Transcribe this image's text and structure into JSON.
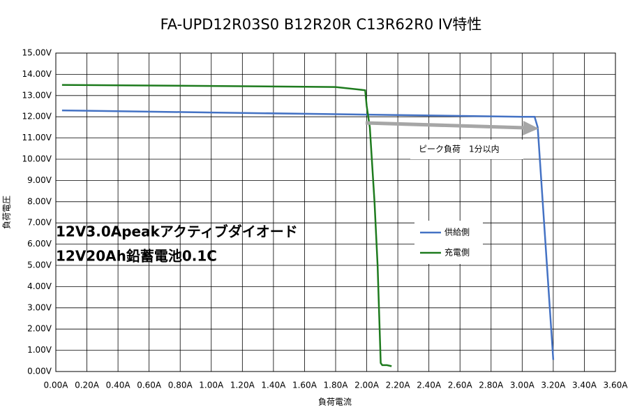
{
  "chart_data": {
    "type": "line",
    "title": "FA-UPD12R03S0 B12R20R C13R62R0 IV特性",
    "x_label": "負荷電流",
    "y_label": "負荷電圧",
    "xlim": [
      0,
      3.6
    ],
    "ylim": [
      0,
      15
    ],
    "xticks": [
      {
        "value": 0,
        "label": "0.00A"
      },
      {
        "value": 0.2,
        "label": "0.20A"
      },
      {
        "value": 0.4,
        "label": "0.40A"
      },
      {
        "value": 0.6,
        "label": "0.60A"
      },
      {
        "value": 0.8,
        "label": "0.80A"
      },
      {
        "value": 1.0,
        "label": "1.00A"
      },
      {
        "value": 1.2,
        "label": "1.20A"
      },
      {
        "value": 1.4,
        "label": "1.40A"
      },
      {
        "value": 1.6,
        "label": "1.60A"
      },
      {
        "value": 1.8,
        "label": "1.80A"
      },
      {
        "value": 2.0,
        "label": "2.00A"
      },
      {
        "value": 2.2,
        "label": "2.20A"
      },
      {
        "value": 2.4,
        "label": "2.40A"
      },
      {
        "value": 2.6,
        "label": "2.60A"
      },
      {
        "value": 2.8,
        "label": "2.80A"
      },
      {
        "value": 3.0,
        "label": "3.00A"
      },
      {
        "value": 3.2,
        "label": "3.20A"
      },
      {
        "value": 3.4,
        "label": "3.40A"
      },
      {
        "value": 3.6,
        "label": "3.60A"
      }
    ],
    "yticks": [
      {
        "value": 0,
        "label": "0.00V"
      },
      {
        "value": 1,
        "label": "1.00V"
      },
      {
        "value": 2,
        "label": "2.00V"
      },
      {
        "value": 3,
        "label": "3.00V"
      },
      {
        "value": 4,
        "label": "4.00V"
      },
      {
        "value": 5,
        "label": "5.00V"
      },
      {
        "value": 6,
        "label": "6.00V"
      },
      {
        "value": 7,
        "label": "7.00V"
      },
      {
        "value": 8,
        "label": "8.00V"
      },
      {
        "value": 9,
        "label": "9.00V"
      },
      {
        "value": 10,
        "label": "10.00V"
      },
      {
        "value": 11,
        "label": "11.00V"
      },
      {
        "value": 12,
        "label": "12.00V"
      },
      {
        "value": 13,
        "label": "13.00V"
      },
      {
        "value": 14,
        "label": "14.00V"
      },
      {
        "value": 15,
        "label": "15.00V"
      }
    ],
    "grid": true,
    "series": [
      {
        "name": "供給側",
        "color": "#4472c4",
        "x": [
          0.04,
          1.0,
          2.0,
          3.0,
          3.08,
          3.1,
          3.2
        ],
        "values": [
          12.3,
          12.2,
          12.1,
          12.0,
          12.0,
          11.5,
          0.55
        ]
      },
      {
        "name": "充電側",
        "color": "#1e7b1e",
        "x": [
          0.04,
          1.0,
          1.8,
          1.99,
          2.0,
          2.02,
          2.05,
          2.07,
          2.09,
          2.1,
          2.13,
          2.16
        ],
        "values": [
          13.5,
          13.45,
          13.4,
          13.25,
          12.5,
          11.5,
          8.0,
          5.0,
          0.4,
          0.3,
          0.3,
          0.25
        ]
      }
    ],
    "annotations": [
      "12V3.0Apeakアクティブダイオード",
      "12V20Ah鉛蓄電池0.1C",
      "ピーク負荷　1分以内"
    ]
  }
}
